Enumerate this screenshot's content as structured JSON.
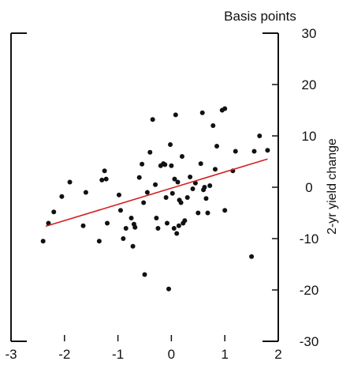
{
  "chart_data": {
    "type": "scatter",
    "title": "",
    "xlabel": "",
    "ylabel": "2-yr yield change",
    "unit_label": "Basis points",
    "xlim": [
      -3,
      2
    ],
    "ylim": [
      -30,
      30
    ],
    "x_ticks": [
      -3,
      -2,
      -1,
      0,
      1,
      2
    ],
    "y_ticks": [
      -30,
      -20,
      -10,
      0,
      10,
      20,
      30
    ],
    "grid": false,
    "colors": {
      "points": "#111111",
      "trend": "#d42020",
      "axes": "#111111"
    },
    "trend_line": {
      "x": [
        -2.35,
        1.8
      ],
      "y": [
        -7.6,
        5.5
      ]
    },
    "points": [
      [
        -2.4,
        -10.5
      ],
      [
        -2.3,
        -7.0
      ],
      [
        -2.2,
        -4.8
      ],
      [
        -2.05,
        -1.8
      ],
      [
        -1.9,
        1.0
      ],
      [
        -1.65,
        -7.5
      ],
      [
        -1.6,
        -1.0
      ],
      [
        -1.35,
        -10.5
      ],
      [
        -1.3,
        1.4
      ],
      [
        -1.25,
        3.2
      ],
      [
        -1.22,
        1.6
      ],
      [
        -1.2,
        -7.0
      ],
      [
        -0.98,
        -1.5
      ],
      [
        -0.95,
        -4.5
      ],
      [
        -0.9,
        -10.0
      ],
      [
        -0.85,
        -8.0
      ],
      [
        -0.75,
        -6.0
      ],
      [
        -0.72,
        -11.5
      ],
      [
        -0.7,
        -7.2
      ],
      [
        -0.68,
        -7.8
      ],
      [
        -0.6,
        1.9
      ],
      [
        -0.55,
        4.5
      ],
      [
        -0.52,
        -3.0
      ],
      [
        -0.5,
        -17.0
      ],
      [
        -0.45,
        -1.0
      ],
      [
        -0.4,
        6.8
      ],
      [
        -0.35,
        13.2
      ],
      [
        -0.3,
        0.5
      ],
      [
        -0.28,
        -6.0
      ],
      [
        -0.25,
        -8.0
      ],
      [
        -0.2,
        4.2
      ],
      [
        -0.15,
        4.6
      ],
      [
        -0.12,
        4.4
      ],
      [
        -0.1,
        -2.0
      ],
      [
        -0.08,
        -7.0
      ],
      [
        -0.05,
        -19.8
      ],
      [
        -0.02,
        8.3
      ],
      [
        0.0,
        4.2
      ],
      [
        0.02,
        -1.2
      ],
      [
        0.05,
        -8.0
      ],
      [
        0.06,
        1.6
      ],
      [
        0.08,
        14.1
      ],
      [
        0.1,
        -9.0
      ],
      [
        0.12,
        1.0
      ],
      [
        0.14,
        -7.5
      ],
      [
        0.15,
        -2.5
      ],
      [
        0.18,
        -3.0
      ],
      [
        0.2,
        6.0
      ],
      [
        0.22,
        -7.0
      ],
      [
        0.25,
        -6.5
      ],
      [
        0.3,
        -2.0
      ],
      [
        0.35,
        2.0
      ],
      [
        0.4,
        -0.3
      ],
      [
        0.45,
        0.8
      ],
      [
        0.5,
        -5.0
      ],
      [
        0.55,
        4.6
      ],
      [
        0.58,
        14.5
      ],
      [
        0.6,
        -0.5
      ],
      [
        0.62,
        0.0
      ],
      [
        0.65,
        -2.2
      ],
      [
        0.68,
        -5.0
      ],
      [
        0.72,
        0.3
      ],
      [
        0.78,
        12.0
      ],
      [
        0.82,
        3.5
      ],
      [
        0.85,
        8.0
      ],
      [
        0.95,
        15.0
      ],
      [
        1.0,
        15.3
      ],
      [
        1.0,
        -4.5
      ],
      [
        1.15,
        3.2
      ],
      [
        1.2,
        7.0
      ],
      [
        1.5,
        -13.5
      ],
      [
        1.55,
        7.0
      ],
      [
        1.65,
        10.0
      ],
      [
        1.8,
        7.2
      ]
    ]
  }
}
